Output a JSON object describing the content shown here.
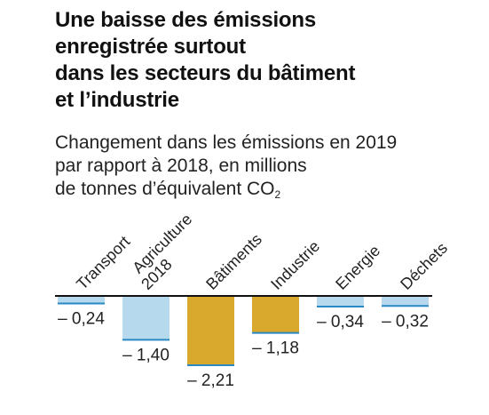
{
  "title_lines": [
    "Une baisse des émissions",
    "enregistrée surtout",
    "dans les secteurs du bâtiment",
    "et l’industrie"
  ],
  "subtitle_lines": [
    "Changement dans les émissions en 2019",
    "par rapport à 2018, en millions",
    "de tonnes d’équivalent CO"
  ],
  "subtitle_subscript": "2",
  "colors": {
    "light_bar": "#b7d9ee",
    "dark_bar": "#d8a92c",
    "bar_edge": "#2a88c4",
    "baseline": "#111111",
    "text": "#222222"
  },
  "chart_data": {
    "type": "bar",
    "title": "Une baisse des émissions enregistrée surtout dans les secteurs du bâtiment et l’industrie",
    "subtitle": "Changement dans les émissions en 2019 par rapport à 2018, en millions de tonnes d’équivalent CO2",
    "categories": [
      "Transport",
      "Agriculture 2018",
      "Bâtiments",
      "Industrie",
      "Energie",
      "Déchets"
    ],
    "category_label_lines": [
      [
        "Transport"
      ],
      [
        "Agriculture",
        "2018"
      ],
      [
        "Bâtiments"
      ],
      [
        "Industrie"
      ],
      [
        "Energie"
      ],
      [
        "Déchets"
      ]
    ],
    "values": [
      -0.24,
      -1.4,
      -2.21,
      -1.18,
      -0.34,
      -0.32
    ],
    "value_labels": [
      "– 0,24",
      "– 1,40",
      "– 2,21",
      "– 1,18",
      "– 0,34",
      "– 0,32"
    ],
    "highlighted": [
      false,
      false,
      true,
      true,
      false,
      false
    ],
    "ylim": [
      -2.21,
      0
    ],
    "grid": false,
    "legend": "none"
  }
}
